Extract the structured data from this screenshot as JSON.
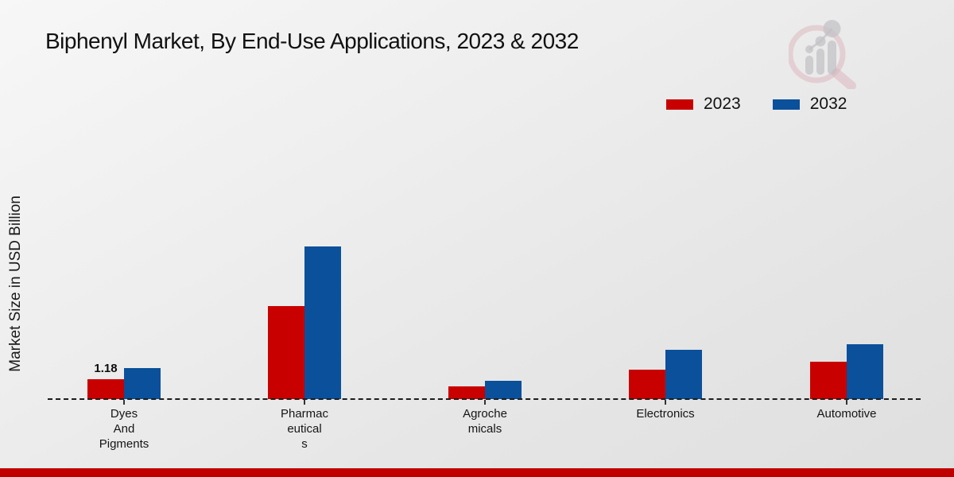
{
  "title": "Biphenyl Market, By End-Use Applications, 2023 & 2032",
  "y_axis_label": "Market Size in USD Billion",
  "legend": {
    "items": [
      {
        "label": "2023",
        "color": "#c80000"
      },
      {
        "label": "2032",
        "color": "#0a509b"
      }
    ]
  },
  "branding": {
    "logo_icon": "market-research-future-logo",
    "footer_strip_color": "#c00000"
  },
  "chart_data": {
    "type": "bar",
    "title": "Biphenyl Market, By End-Use Applications, 2023 & 2032",
    "ylabel": "Market Size in USD Billion",
    "categories": [
      "Dyes And Pigments",
      "Pharmaceuticals",
      "Agrochemicals",
      "Electronics",
      "Automotive"
    ],
    "category_display": [
      [
        "Dyes",
        "And",
        "Pigments"
      ],
      [
        "Pharmac",
        "eutical",
        "s"
      ],
      [
        "Agroche",
        "micals"
      ],
      [
        "Electronics"
      ],
      [
        "Automotive"
      ]
    ],
    "series": [
      {
        "name": "2023",
        "color": "#c80000",
        "values": [
          1.18,
          5.5,
          0.75,
          1.75,
          2.2
        ]
      },
      {
        "name": "2032",
        "color": "#0a509b",
        "values": [
          1.85,
          9.0,
          1.1,
          2.9,
          3.25
        ]
      }
    ],
    "data_labels": [
      {
        "series_index": 0,
        "category_index": 0,
        "text": "1.18"
      }
    ],
    "ylim": [
      0,
      10
    ],
    "grid": false,
    "baseline_style": "dashed",
    "legend_position": "top-right"
  }
}
